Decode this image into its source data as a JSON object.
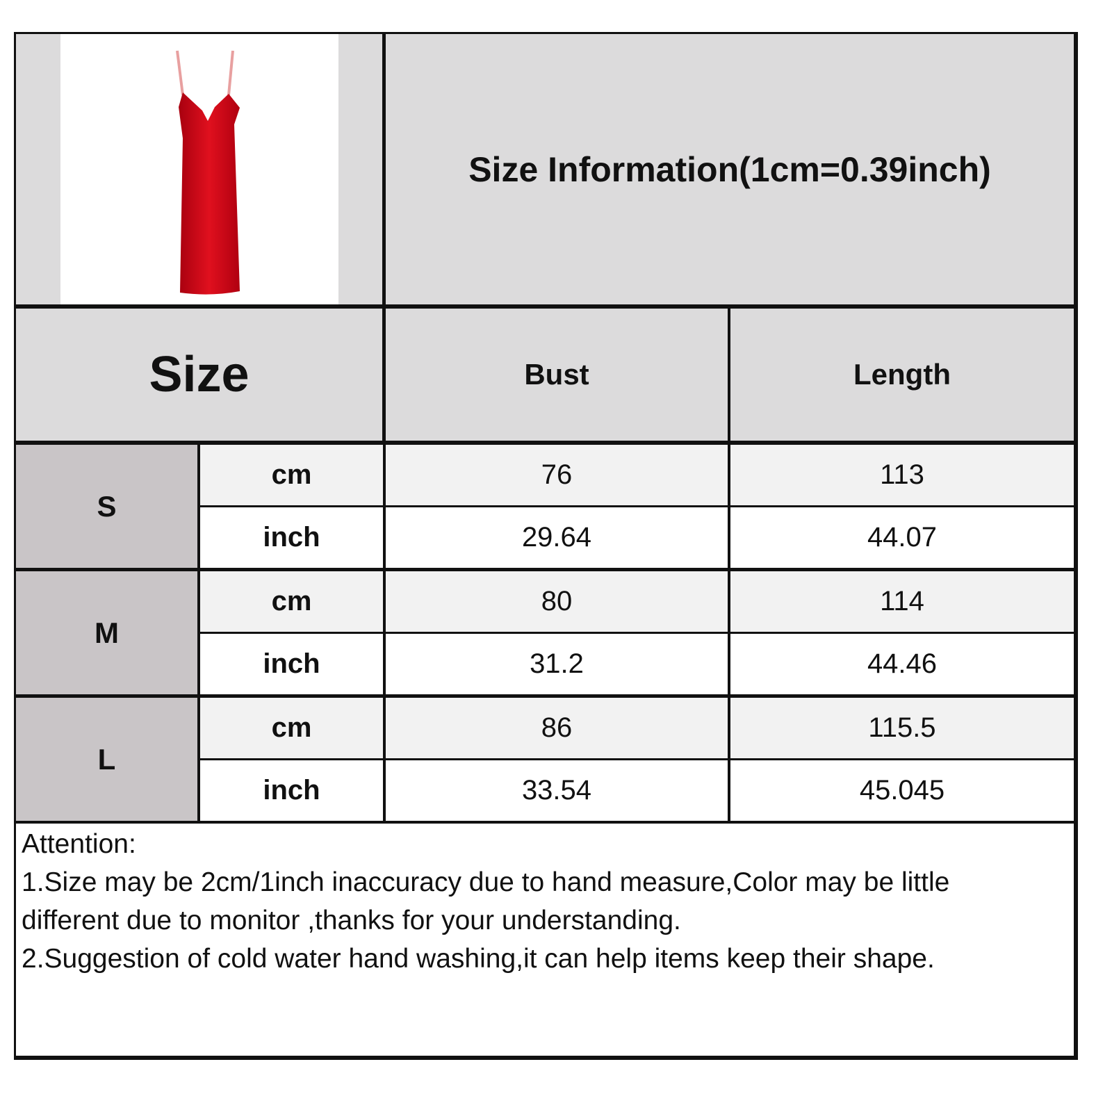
{
  "title": "Size Information(1cm=0.39inch)",
  "product_image": {
    "description_icon": "red-slip-dress",
    "color": "#c8101a"
  },
  "header": {
    "size": "Size",
    "bust": "Bust",
    "length": "Length"
  },
  "rows": [
    {
      "size": "S",
      "cm": {
        "unit": "cm",
        "bust": "76",
        "length": "113"
      },
      "inch": {
        "unit": "inch",
        "bust": "29.64",
        "length": "44.07"
      }
    },
    {
      "size": "M",
      "cm": {
        "unit": "cm",
        "bust": "80",
        "length": "114"
      },
      "inch": {
        "unit": "inch",
        "bust": "31.2",
        "length": "44.46"
      }
    },
    {
      "size": "L",
      "cm": {
        "unit": "cm",
        "bust": "86",
        "length": "115.5"
      },
      "inch": {
        "unit": "inch",
        "bust": "33.54",
        "length": "45.045"
      }
    }
  ],
  "notes": {
    "heading": "Attention:",
    "line1": "1.Size may be 2cm/1inch inaccuracy due to hand measure,Color may be little",
    "line2": "different due to monitor ,thanks for your understanding.",
    "line3": "2.Suggestion of cold water hand washing,it can help items keep their shape."
  }
}
